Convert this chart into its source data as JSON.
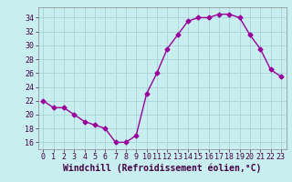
{
  "x": [
    0,
    1,
    2,
    3,
    4,
    5,
    6,
    7,
    8,
    9,
    10,
    11,
    12,
    13,
    14,
    15,
    16,
    17,
    18,
    19,
    20,
    21,
    22,
    23
  ],
  "y": [
    22,
    21,
    21,
    20,
    19,
    18.5,
    18,
    16,
    16,
    17,
    23,
    26,
    29.5,
    31.5,
    33.5,
    34,
    34,
    34.5,
    34.5,
    34,
    31.5,
    29.5,
    26.5,
    25.5
  ],
  "color": "#990099",
  "marker": "D",
  "markersize": 2.5,
  "linewidth": 1.0,
  "xlabel": "Windchill (Refroidissement éolien,°C)",
  "xlabel_fontsize": 7,
  "xlim": [
    -0.5,
    23.5
  ],
  "ylim": [
    15,
    35.5
  ],
  "yticks": [
    16,
    18,
    20,
    22,
    24,
    26,
    28,
    30,
    32,
    34
  ],
  "xticks": [
    0,
    1,
    2,
    3,
    4,
    5,
    6,
    7,
    8,
    9,
    10,
    11,
    12,
    13,
    14,
    15,
    16,
    17,
    18,
    19,
    20,
    21,
    22,
    23
  ],
  "tick_fontsize": 6,
  "bg_color": "#c8eef0",
  "grid_color": "#aad8dc",
  "line_color": "#990099"
}
